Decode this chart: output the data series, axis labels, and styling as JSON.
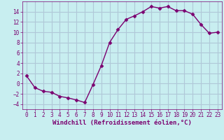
{
  "x": [
    0,
    1,
    2,
    3,
    4,
    5,
    6,
    7,
    8,
    9,
    10,
    11,
    12,
    13,
    14,
    15,
    16,
    17,
    18,
    19,
    20,
    21,
    22,
    23
  ],
  "y": [
    1.5,
    -0.8,
    -1.5,
    -1.7,
    -2.5,
    -2.8,
    -3.2,
    -3.7,
    -0.2,
    3.5,
    8.0,
    10.5,
    12.5,
    13.2,
    14.0,
    15.0,
    14.7,
    15.0,
    14.2,
    14.2,
    13.5,
    11.5,
    9.8,
    10.0
  ],
  "line_color": "#7b0070",
  "marker": "D",
  "marker_size": 2.5,
  "bg_color": "#c8eef0",
  "grid_color": "#b0c8d8",
  "xlabel": "Windchill (Refroidissement éolien,°C)",
  "xlim": [
    -0.5,
    23.5
  ],
  "ylim": [
    -5,
    16
  ],
  "yticks": [
    -4,
    -2,
    0,
    2,
    4,
    6,
    8,
    10,
    12,
    14
  ],
  "xticks": [
    0,
    1,
    2,
    3,
    4,
    5,
    6,
    7,
    8,
    9,
    10,
    11,
    12,
    13,
    14,
    15,
    16,
    17,
    18,
    19,
    20,
    21,
    22,
    23
  ],
  "tick_label_size": 5.5,
  "xlabel_size": 6.5,
  "line_width": 1.0
}
